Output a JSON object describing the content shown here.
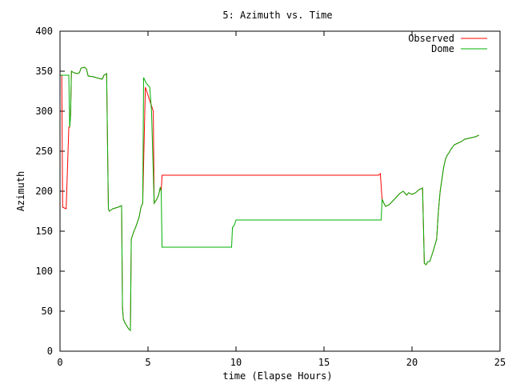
{
  "chart_data": {
    "type": "line",
    "title": "5: Azimuth vs. Time",
    "xlabel": "time (Elapse Hours)",
    "ylabel": "Azimuth",
    "xlim": [
      0,
      25
    ],
    "ylim": [
      0,
      400
    ],
    "xticks": [
      0,
      5,
      10,
      15,
      20,
      25
    ],
    "yticks": [
      0,
      50,
      100,
      150,
      200,
      250,
      300,
      350,
      400
    ],
    "grid": false,
    "legend_position": "top-right",
    "series": [
      {
        "name": "Observed",
        "color": "#ff0000",
        "points": [
          [
            0.0,
            345
          ],
          [
            0.1,
            345
          ],
          [
            0.15,
            180
          ],
          [
            0.35,
            178
          ],
          [
            0.45,
            245
          ],
          [
            0.5,
            280
          ],
          [
            0.55,
            280
          ],
          [
            0.6,
            295
          ],
          [
            0.65,
            350
          ],
          [
            0.8,
            348
          ],
          [
            1.0,
            347
          ],
          [
            1.1,
            348
          ],
          [
            1.2,
            354
          ],
          [
            1.4,
            355
          ],
          [
            1.5,
            353
          ],
          [
            1.6,
            344
          ],
          [
            1.9,
            343
          ],
          [
            2.2,
            341
          ],
          [
            2.4,
            340
          ],
          [
            2.5,
            345
          ],
          [
            2.65,
            347
          ],
          [
            2.7,
            260
          ],
          [
            2.75,
            178
          ],
          [
            2.8,
            175
          ],
          [
            3.0,
            178
          ],
          [
            3.3,
            180
          ],
          [
            3.5,
            182
          ],
          [
            3.55,
            55
          ],
          [
            3.6,
            40
          ],
          [
            3.7,
            35
          ],
          [
            3.9,
            28
          ],
          [
            4.0,
            26
          ],
          [
            4.05,
            140
          ],
          [
            4.2,
            150
          ],
          [
            4.3,
            155
          ],
          [
            4.5,
            168
          ],
          [
            4.6,
            180
          ],
          [
            4.7,
            185
          ],
          [
            4.85,
            330
          ],
          [
            5.0,
            320
          ],
          [
            5.3,
            300
          ],
          [
            5.35,
            185
          ],
          [
            5.5,
            190
          ],
          [
            5.6,
            195
          ],
          [
            5.7,
            205
          ],
          [
            5.75,
            200
          ],
          [
            5.8,
            220
          ],
          [
            6.5,
            220
          ],
          [
            10.0,
            220
          ],
          [
            15.0,
            220
          ],
          [
            18.1,
            220
          ],
          [
            18.2,
            222
          ],
          [
            18.3,
            190
          ],
          [
            18.4,
            185
          ],
          [
            18.5,
            181
          ],
          [
            18.7,
            183
          ],
          [
            19.0,
            190
          ],
          [
            19.3,
            197
          ],
          [
            19.5,
            200
          ],
          [
            19.7,
            195
          ],
          [
            19.8,
            198
          ],
          [
            20.0,
            196
          ],
          [
            20.2,
            198
          ],
          [
            20.4,
            202
          ],
          [
            20.6,
            204
          ],
          [
            20.7,
            110
          ],
          [
            20.8,
            108
          ],
          [
            20.9,
            112
          ],
          [
            21.0,
            112
          ],
          [
            21.1,
            118
          ],
          [
            21.2,
            125
          ],
          [
            21.4,
            140
          ],
          [
            21.5,
            175
          ],
          [
            21.6,
            200
          ],
          [
            21.7,
            215
          ],
          [
            21.8,
            230
          ],
          [
            21.9,
            240
          ],
          [
            22.0,
            245
          ],
          [
            22.1,
            248
          ],
          [
            22.2,
            252
          ],
          [
            22.4,
            258
          ],
          [
            22.6,
            260
          ],
          [
            22.8,
            262
          ],
          [
            23.0,
            265
          ],
          [
            23.2,
            266
          ],
          [
            23.4,
            267
          ],
          [
            23.6,
            268
          ],
          [
            23.8,
            270
          ]
        ]
      },
      {
        "name": "Dome",
        "color": "#00b000",
        "points": [
          [
            0.0,
            345
          ],
          [
            0.5,
            345
          ],
          [
            0.55,
            280
          ],
          [
            0.6,
            295
          ],
          [
            0.65,
            350
          ],
          [
            0.8,
            348
          ],
          [
            1.0,
            347
          ],
          [
            1.1,
            348
          ],
          [
            1.2,
            354
          ],
          [
            1.4,
            355
          ],
          [
            1.5,
            353
          ],
          [
            1.6,
            344
          ],
          [
            1.9,
            343
          ],
          [
            2.2,
            341
          ],
          [
            2.4,
            340
          ],
          [
            2.5,
            345
          ],
          [
            2.65,
            347
          ],
          [
            2.7,
            260
          ],
          [
            2.75,
            178
          ],
          [
            2.8,
            175
          ],
          [
            3.0,
            178
          ],
          [
            3.3,
            180
          ],
          [
            3.5,
            182
          ],
          [
            3.55,
            55
          ],
          [
            3.6,
            40
          ],
          [
            3.7,
            35
          ],
          [
            3.9,
            28
          ],
          [
            4.0,
            26
          ],
          [
            4.05,
            140
          ],
          [
            4.2,
            150
          ],
          [
            4.3,
            155
          ],
          [
            4.5,
            168
          ],
          [
            4.6,
            180
          ],
          [
            4.7,
            185
          ],
          [
            4.75,
            342
          ],
          [
            4.9,
            335
          ],
          [
            5.1,
            330
          ],
          [
            5.2,
            300
          ],
          [
            5.35,
            185
          ],
          [
            5.5,
            190
          ],
          [
            5.6,
            195
          ],
          [
            5.7,
            205
          ],
          [
            5.75,
            200
          ],
          [
            5.8,
            130
          ],
          [
            6.5,
            130
          ],
          [
            9.75,
            130
          ],
          [
            9.8,
            155
          ],
          [
            9.9,
            157
          ],
          [
            10.0,
            164
          ],
          [
            12.0,
            164
          ],
          [
            15.0,
            164
          ],
          [
            18.25,
            164
          ],
          [
            18.3,
            190
          ],
          [
            18.4,
            185
          ],
          [
            18.5,
            181
          ],
          [
            18.7,
            183
          ],
          [
            19.0,
            190
          ],
          [
            19.3,
            197
          ],
          [
            19.5,
            200
          ],
          [
            19.7,
            195
          ],
          [
            19.8,
            198
          ],
          [
            20.0,
            196
          ],
          [
            20.2,
            198
          ],
          [
            20.4,
            202
          ],
          [
            20.6,
            204
          ],
          [
            20.7,
            110
          ],
          [
            20.8,
            108
          ],
          [
            20.9,
            112
          ],
          [
            21.0,
            112
          ],
          [
            21.1,
            118
          ],
          [
            21.2,
            125
          ],
          [
            21.4,
            140
          ],
          [
            21.5,
            175
          ],
          [
            21.6,
            200
          ],
          [
            21.7,
            215
          ],
          [
            21.8,
            230
          ],
          [
            21.9,
            240
          ],
          [
            22.0,
            245
          ],
          [
            22.1,
            248
          ],
          [
            22.2,
            252
          ],
          [
            22.4,
            258
          ],
          [
            22.6,
            260
          ],
          [
            22.8,
            262
          ],
          [
            23.0,
            265
          ],
          [
            23.2,
            266
          ],
          [
            23.4,
            267
          ],
          [
            23.6,
            268
          ],
          [
            23.8,
            270
          ]
        ]
      }
    ]
  }
}
